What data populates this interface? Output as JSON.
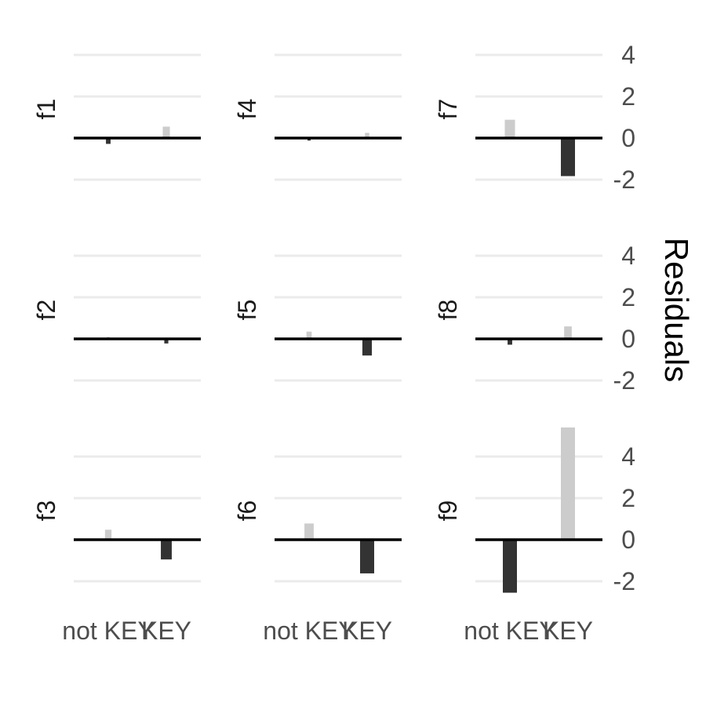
{
  "chart_data": {
    "type": "bar",
    "ylabel": "Residuals",
    "categories": [
      "not KEY",
      "KEY"
    ],
    "y_ticks": [
      "4",
      "2",
      "0",
      "-2"
    ],
    "ylim": [
      -2.6,
      5.6
    ],
    "grid": true,
    "colors": {
      "positive": "#cccccc",
      "negative": "#333333",
      "grid": "#ebebeb",
      "zero_line": "#000000"
    },
    "facets": [
      {
        "label": "f1",
        "values": [
          -0.28,
          0.55
        ]
      },
      {
        "label": "f2",
        "values": [
          0.1,
          -0.22
        ]
      },
      {
        "label": "f3",
        "values": [
          0.48,
          -0.95
        ]
      },
      {
        "label": "f4",
        "values": [
          -0.12,
          0.25
        ]
      },
      {
        "label": "f5",
        "values": [
          0.35,
          -0.8
        ]
      },
      {
        "label": "f6",
        "values": [
          0.78,
          -1.62
        ]
      },
      {
        "label": "f7",
        "values": [
          0.88,
          -1.83
        ]
      },
      {
        "label": "f8",
        "values": [
          -0.28,
          0.6
        ]
      },
      {
        "label": "f9",
        "values": [
          -2.55,
          5.4
        ]
      }
    ]
  }
}
